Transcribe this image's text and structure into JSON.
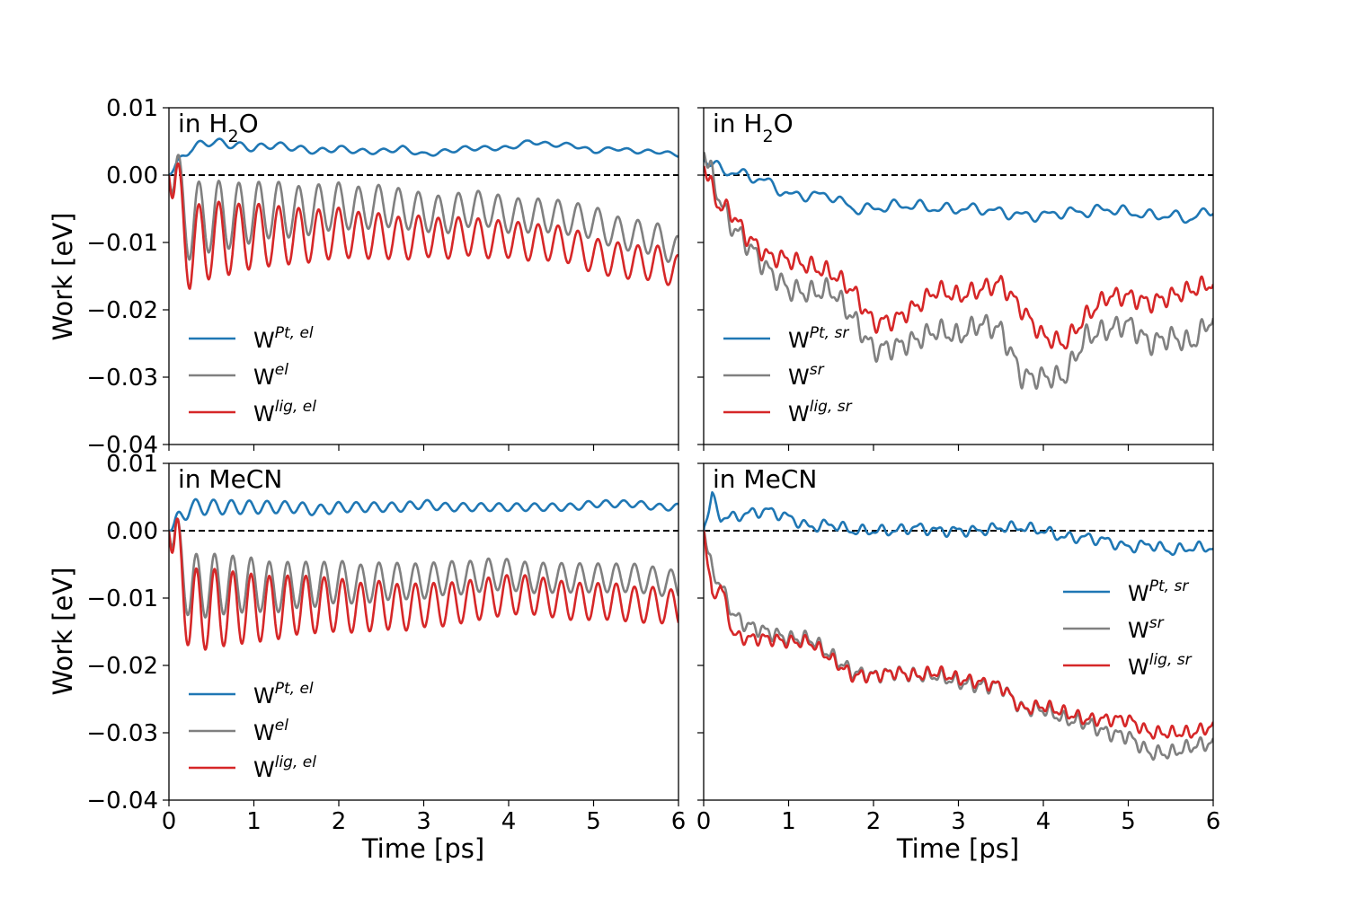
{
  "figure": {
    "ylabel": "Work [eV]",
    "xlabel": "Time [ps]",
    "ylim": [
      -0.04,
      0.01
    ],
    "xlim": [
      0,
      6
    ],
    "yticks": [
      0.01,
      0.0,
      -0.01,
      -0.02,
      -0.03,
      -0.04
    ],
    "ytick_labels": [
      "0.01",
      "0.00",
      "−0.01",
      "−0.02",
      "−0.03",
      "−0.04"
    ],
    "xticks": [
      0,
      1,
      2,
      3,
      4,
      5,
      6
    ],
    "xtick_labels": [
      "0",
      "1",
      "2",
      "3",
      "4",
      "5",
      "6"
    ],
    "colors": {
      "Pt": "#1f77b4",
      "total": "#808080",
      "lig": "#d62728",
      "zero_line": "#000000"
    }
  },
  "chart_data": [
    {
      "type": "line",
      "title_prefix": "in H",
      "title_sub": "2",
      "title_suffix": "O",
      "legend_position": "lower-left",
      "legend": [
        {
          "base": "W",
          "sup": "Pt, el"
        },
        {
          "base": "W",
          "sup": "el"
        },
        {
          "base": "W",
          "sup": "lig, el"
        }
      ],
      "x": [
        0,
        0.25,
        0.5,
        0.75,
        1,
        1.25,
        1.5,
        1.75,
        2,
        2.25,
        2.5,
        2.75,
        3,
        3.25,
        3.5,
        3.75,
        4,
        4.25,
        4.5,
        4.75,
        5,
        5.25,
        5.5,
        5.75,
        6
      ],
      "series": [
        {
          "name": "Pt",
          "values": [
            0,
            0.004,
            0.005,
            0.0045,
            0.004,
            0.0045,
            0.004,
            0.0035,
            0.004,
            0.0035,
            0.0035,
            0.004,
            0.003,
            0.0035,
            0.004,
            0.004,
            0.004,
            0.005,
            0.0045,
            0.0045,
            0.0035,
            0.004,
            0.0035,
            0.0035,
            0.003
          ],
          "oscillation": {
            "amp": 0.0007,
            "period": 0.24,
            "decay": 0.5
          }
        },
        {
          "name": "total",
          "values": [
            0,
            -0.007,
            -0.006,
            -0.006,
            -0.0055,
            -0.005,
            -0.0055,
            -0.005,
            -0.0045,
            -0.005,
            -0.0045,
            -0.005,
            -0.0055,
            -0.006,
            -0.005,
            -0.005,
            -0.006,
            -0.006,
            -0.006,
            -0.0065,
            -0.007,
            -0.0085,
            -0.009,
            -0.0095,
            -0.0115
          ],
          "oscillation": {
            "amp": 0.0065,
            "period": 0.235,
            "decay": 0.38
          }
        },
        {
          "name": "lig",
          "values": [
            0,
            -0.011,
            -0.0095,
            -0.0095,
            -0.009,
            -0.009,
            -0.009,
            -0.009,
            -0.0085,
            -0.009,
            -0.009,
            -0.0095,
            -0.009,
            -0.0095,
            -0.009,
            -0.0095,
            -0.0095,
            -0.01,
            -0.01,
            -0.0105,
            -0.012,
            -0.0125,
            -0.013,
            -0.013,
            -0.0145
          ],
          "oscillation": {
            "amp": 0.007,
            "period": 0.235,
            "decay": 0.38
          }
        }
      ]
    },
    {
      "type": "line",
      "title_prefix": "in H",
      "title_sub": "2",
      "title_suffix": "O",
      "legend_position": "lower-left",
      "legend": [
        {
          "base": "W",
          "sup": "Pt, sr"
        },
        {
          "base": "W",
          "sup": "sr"
        },
        {
          "base": "W",
          "sup": "lig, sr"
        }
      ],
      "x": [
        0,
        0.1,
        0.2,
        0.3,
        0.5,
        0.75,
        1,
        1.25,
        1.5,
        1.75,
        2,
        2.25,
        2.5,
        2.75,
        3,
        3.25,
        3.5,
        3.75,
        4,
        4.25,
        4.5,
        4.75,
        5,
        5.25,
        5.5,
        5.75,
        6
      ],
      "series": [
        {
          "name": "Pt",
          "values": [
            0.002,
            0.0015,
            0.001,
            0.0005,
            0,
            -0.001,
            -0.003,
            -0.003,
            -0.003,
            -0.005,
            -0.005,
            -0.0045,
            -0.0045,
            -0.005,
            -0.005,
            -0.005,
            -0.0055,
            -0.006,
            -0.006,
            -0.0055,
            -0.0055,
            -0.005,
            -0.0055,
            -0.006,
            -0.006,
            -0.0065,
            -0.005
          ],
          "oscillation": {
            "amp": 0.0006,
            "period": 0.3,
            "decay": 0
          }
        },
        {
          "name": "total",
          "values": [
            0.003,
            0,
            -0.004,
            -0.007,
            -0.01,
            -0.014,
            -0.017,
            -0.0175,
            -0.017,
            -0.021,
            -0.026,
            -0.0255,
            -0.0245,
            -0.023,
            -0.024,
            -0.022,
            -0.023,
            -0.03,
            -0.03,
            -0.03,
            -0.024,
            -0.023,
            -0.022,
            -0.025,
            -0.024,
            -0.025,
            -0.021
          ],
          "oscillation": {
            "amp": 0.0012,
            "period": 0.17,
            "decay": 0
          }
        },
        {
          "name": "lig",
          "values": [
            0.001,
            -0.002,
            -0.005,
            -0.005,
            -0.009,
            -0.012,
            -0.0125,
            -0.0135,
            -0.0145,
            -0.017,
            -0.022,
            -0.0215,
            -0.0195,
            -0.017,
            -0.018,
            -0.017,
            -0.016,
            -0.02,
            -0.024,
            -0.025,
            -0.021,
            -0.018,
            -0.018,
            -0.019,
            -0.018,
            -0.017,
            -0.016
          ],
          "oscillation": {
            "amp": 0.001,
            "period": 0.17,
            "decay": 0
          }
        }
      ]
    },
    {
      "type": "line",
      "title_prefix": "in MeCN",
      "title_sub": "",
      "title_suffix": "",
      "legend_position": "lower-left",
      "legend": [
        {
          "base": "W",
          "sup": "Pt, el"
        },
        {
          "base": "W",
          "sup": "el"
        },
        {
          "base": "W",
          "sup": "lig, el"
        }
      ],
      "x": [
        0,
        0.25,
        0.5,
        0.75,
        1,
        1.25,
        1.5,
        1.75,
        2,
        2.25,
        2.5,
        2.75,
        3,
        3.25,
        3.5,
        3.75,
        4,
        4.25,
        4.5,
        4.75,
        5,
        5.25,
        5.5,
        5.75,
        6
      ],
      "series": [
        {
          "name": "Pt",
          "values": [
            0,
            0.0035,
            0.0035,
            0.0035,
            0.0035,
            0.0035,
            0.0035,
            0.003,
            0.0035,
            0.0035,
            0.0035,
            0.0035,
            0.004,
            0.0035,
            0.0035,
            0.0035,
            0.0035,
            0.0035,
            0.0035,
            0.0035,
            0.004,
            0.004,
            0.004,
            0.0035,
            0.0035
          ],
          "oscillation": {
            "amp": 0.0013,
            "period": 0.21,
            "decay": 0.5
          }
        },
        {
          "name": "total",
          "values": [
            0,
            -0.0085,
            -0.008,
            -0.008,
            -0.008,
            -0.0085,
            -0.008,
            -0.008,
            -0.0075,
            -0.008,
            -0.0075,
            -0.0075,
            -0.0075,
            -0.007,
            -0.007,
            -0.0065,
            -0.0065,
            -0.007,
            -0.007,
            -0.007,
            -0.007,
            -0.007,
            -0.007,
            -0.0075,
            -0.008
          ],
          "oscillation": {
            "amp": 0.0055,
            "period": 0.215,
            "decay": 0.45
          }
        },
        {
          "name": "lig",
          "values": [
            0,
            -0.012,
            -0.0115,
            -0.0115,
            -0.0115,
            -0.0115,
            -0.011,
            -0.011,
            -0.011,
            -0.0115,
            -0.011,
            -0.0115,
            -0.011,
            -0.011,
            -0.0105,
            -0.01,
            -0.0095,
            -0.0095,
            -0.01,
            -0.0105,
            -0.0105,
            -0.0105,
            -0.011,
            -0.011,
            -0.0115
          ],
          "oscillation": {
            "amp": 0.007,
            "period": 0.215,
            "decay": 0.45
          }
        }
      ]
    },
    {
      "type": "line",
      "title_prefix": "in MeCN",
      "title_sub": "",
      "title_suffix": "",
      "legend_position": "center-right",
      "legend": [
        {
          "base": "W",
          "sup": "Pt, sr"
        },
        {
          "base": "W",
          "sup": "sr"
        },
        {
          "base": "W",
          "sup": "lig, sr"
        }
      ],
      "x": [
        0,
        0.1,
        0.2,
        0.35,
        0.5,
        0.75,
        1,
        1.25,
        1.5,
        1.75,
        2,
        2.25,
        2.5,
        2.75,
        3,
        3.25,
        3.5,
        3.75,
        4,
        4.25,
        4.5,
        4.75,
        5,
        5.25,
        5.5,
        5.75,
        6
      ],
      "series": [
        {
          "name": "Pt",
          "values": [
            0,
            0.005,
            0.002,
            0.002,
            0.0025,
            0.003,
            0.002,
            0.0005,
            0.001,
            0,
            0,
            0,
            0.0005,
            0,
            0,
            0,
            0.0005,
            0.0005,
            0,
            -0.001,
            -0.001,
            -0.0015,
            -0.0025,
            -0.002,
            -0.003,
            -0.0025,
            -0.0025
          ],
          "oscillation": {
            "amp": 0.0006,
            "period": 0.22,
            "decay": 0
          }
        },
        {
          "name": "total",
          "values": [
            0,
            -0.006,
            -0.008,
            -0.0125,
            -0.014,
            -0.015,
            -0.016,
            -0.016,
            -0.0185,
            -0.021,
            -0.0215,
            -0.021,
            -0.0215,
            -0.0215,
            -0.0225,
            -0.023,
            -0.023,
            -0.0265,
            -0.0265,
            -0.028,
            -0.0285,
            -0.03,
            -0.0305,
            -0.033,
            -0.033,
            -0.032,
            -0.0315
          ],
          "oscillation": {
            "amp": 0.0008,
            "period": 0.16,
            "decay": 0
          }
        },
        {
          "name": "lig",
          "values": [
            0,
            -0.01,
            -0.008,
            -0.0155,
            -0.016,
            -0.016,
            -0.0165,
            -0.0165,
            -0.019,
            -0.0215,
            -0.0215,
            -0.021,
            -0.0215,
            -0.021,
            -0.022,
            -0.0225,
            -0.023,
            -0.0265,
            -0.026,
            -0.027,
            -0.028,
            -0.028,
            -0.028,
            -0.03,
            -0.03,
            -0.03,
            -0.029
          ],
          "oscillation": {
            "amp": 0.0007,
            "period": 0.16,
            "decay": 0
          }
        }
      ]
    }
  ]
}
